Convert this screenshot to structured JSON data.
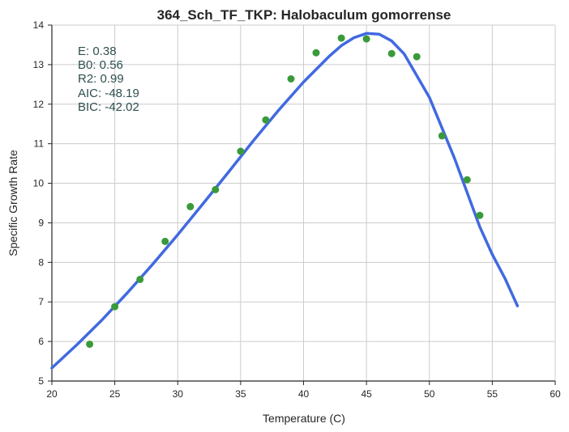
{
  "chart_data": {
    "type": "scatter",
    "title": "364_Sch_TF_TKP: Halobaculum gomorrense",
    "xlabel": "Temperature (C)",
    "ylabel": "Specific Growth Rate",
    "xlim": [
      20,
      60
    ],
    "ylim": [
      5,
      14
    ],
    "xticks": [
      "20",
      "25",
      "30",
      "35",
      "40",
      "45",
      "50",
      "55",
      "60"
    ],
    "yticks": [
      "5",
      "6",
      "7",
      "8",
      "9",
      "10",
      "11",
      "12",
      "13",
      "14"
    ],
    "grid": true,
    "stats": [
      "E:  0.38",
      "B0:  0.56",
      "R2:  0.99",
      "AIC: -48.19",
      "BIC: -42.02"
    ],
    "series": [
      {
        "kind": "points",
        "color": "#3a9a3a",
        "x": [
          23,
          25,
          27,
          29,
          31,
          33,
          35,
          37,
          39,
          41,
          43,
          45,
          47,
          49,
          51,
          53,
          54
        ],
        "y": [
          5.93,
          6.88,
          7.57,
          8.53,
          9.41,
          9.84,
          10.81,
          11.6,
          12.64,
          13.3,
          13.67,
          13.65,
          13.28,
          13.2,
          11.2,
          10.09,
          9.19
        ]
      },
      {
        "kind": "fit",
        "color": "#4169e1",
        "x": [
          20,
          22,
          24,
          26,
          28,
          30,
          32,
          34,
          36,
          38,
          40,
          42,
          43,
          44,
          45,
          46,
          47,
          48,
          50,
          52,
          54,
          55,
          56,
          57
        ],
        "y": [
          5.33,
          5.92,
          6.55,
          7.23,
          7.95,
          8.7,
          9.48,
          10.27,
          11.07,
          11.84,
          12.56,
          13.2,
          13.48,
          13.68,
          13.79,
          13.77,
          13.6,
          13.27,
          12.17,
          10.63,
          8.9,
          8.2,
          7.6,
          6.9
        ]
      }
    ]
  }
}
